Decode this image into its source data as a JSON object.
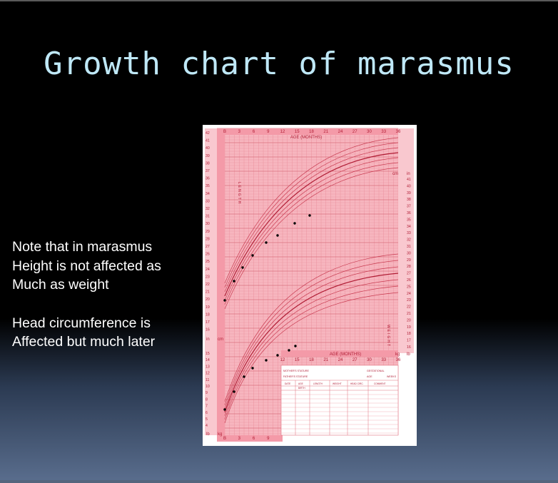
{
  "slide": {
    "title": "Growth chart of marasmus",
    "notes": [
      "Note that in marasmus",
      "Height is not affected as",
      "Much as weight",
      "Head circumference is",
      "Affected but much later"
    ]
  },
  "chart_image": {
    "age_label": "AGE (MONTHS)",
    "age_ticks": [
      "B",
      "3",
      "6",
      "9",
      "12",
      "15",
      "18",
      "21",
      "24",
      "27",
      "30",
      "33",
      "36"
    ],
    "length_label": "LENGTH",
    "weight_label": "WEIGHT",
    "unit_cm": "cm",
    "unit_in": "in",
    "unit_kg": "kg",
    "unit_lb": "lb",
    "left_in_ticks": [
      "42",
      "41",
      "40",
      "39",
      "38",
      "37",
      "36",
      "35",
      "34",
      "33",
      "32",
      "31",
      "30",
      "29",
      "28",
      "27",
      "26",
      "25",
      "24",
      "23",
      "22",
      "21",
      "20",
      "19",
      "18",
      "17",
      "16"
    ],
    "left_lb_ticks": [
      "15",
      "14",
      "13",
      "12",
      "11",
      "10",
      "9",
      "8",
      "7",
      "6",
      "5",
      "4"
    ],
    "right_lb_ticks": [
      "41",
      "40",
      "39",
      "38",
      "37",
      "36",
      "35",
      "34",
      "33",
      "32",
      "31",
      "30",
      "29",
      "28",
      "27",
      "26",
      "25",
      "24",
      "23",
      "22",
      "21",
      "20",
      "19",
      "18",
      "17",
      "16"
    ],
    "record_fields": [
      "MOTHER'S STATURE",
      "GESTATIONAL",
      "FATHER'S STATURE",
      "AGE",
      "WEEKS"
    ],
    "record_headers": [
      "DATE",
      "AGE",
      "LENGTH",
      "WEIGHT",
      "HEAD CIRC.",
      "COMMENT"
    ],
    "record_first_row": "BIRTH",
    "colors": {
      "pink": "#f7b6bf",
      "grid": "#e0707f",
      "dark": "#b01c34",
      "dots": "#000000"
    }
  }
}
